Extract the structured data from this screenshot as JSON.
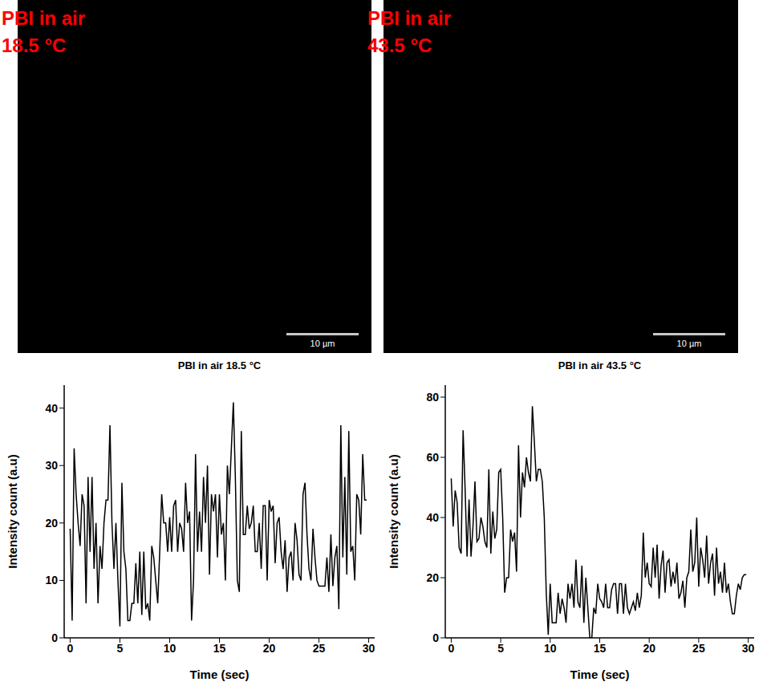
{
  "images": [
    {
      "label": [
        "PBI in air",
        "18.5 °C"
      ],
      "scale_bar": "10 µm"
    },
    {
      "label": [
        "PBI in air",
        "43.5 °C"
      ],
      "scale_bar": "10 µm"
    }
  ],
  "chart_data": [
    {
      "type": "line",
      "title": "PBI in air 18.5 °C",
      "x_label": "Time (sec)",
      "y_label": "Intensity count (a.u)",
      "color": "#000000",
      "xlim": [
        -0.6,
        30.6
      ],
      "xticks": [
        0,
        5,
        10,
        15,
        20,
        25,
        30
      ],
      "ylim": [
        0,
        44
      ],
      "yticks": [
        0,
        10,
        20,
        30,
        40
      ],
      "x": [
        0,
        0.2,
        0.4,
        0.6,
        0.8,
        1,
        1.2,
        1.4,
        1.6,
        1.8,
        2,
        2.2,
        2.4,
        2.6,
        2.8,
        3,
        3.2,
        3.4,
        3.6,
        3.8,
        4,
        4.2,
        4.4,
        4.6,
        4.8,
        5,
        5.2,
        5.4,
        5.6,
        5.8,
        6,
        6.2,
        6.4,
        6.6,
        6.8,
        7,
        7.2,
        7.4,
        7.6,
        7.8,
        8,
        8.2,
        8.4,
        8.6,
        8.8,
        9,
        9.2,
        9.4,
        9.6,
        9.8,
        10,
        10.2,
        10.4,
        10.6,
        10.8,
        11,
        11.2,
        11.4,
        11.6,
        11.8,
        12,
        12.2,
        12.4,
        12.6,
        12.8,
        13,
        13.2,
        13.4,
        13.6,
        13.8,
        14,
        14.2,
        14.4,
        14.6,
        14.8,
        15,
        15.2,
        15.4,
        15.6,
        15.8,
        16,
        16.2,
        16.4,
        16.6,
        16.8,
        17,
        17.2,
        17.4,
        17.6,
        17.8,
        18,
        18.2,
        18.4,
        18.6,
        18.8,
        19,
        19.2,
        19.4,
        19.6,
        19.8,
        20,
        20.2,
        20.4,
        20.6,
        20.8,
        21,
        21.2,
        21.4,
        21.6,
        21.8,
        22,
        22.2,
        22.4,
        22.6,
        22.8,
        23,
        23.2,
        23.4,
        23.6,
        23.8,
        24,
        24.2,
        24.4,
        24.6,
        24.8,
        25,
        25.2,
        25.4,
        25.6,
        25.8,
        26,
        26.2,
        26.4,
        26.6,
        26.8,
        27,
        27.2,
        27.4,
        27.6,
        27.8,
        28,
        28.2,
        28.4,
        28.6,
        28.8,
        29,
        29.2,
        29.4,
        29.6,
        29.8
      ],
      "values": [
        19,
        3,
        33,
        25,
        20,
        16,
        25,
        23,
        6,
        28,
        15,
        28,
        12,
        20,
        6,
        16,
        12,
        20,
        24,
        24,
        37,
        20,
        12,
        20,
        10,
        2,
        27,
        15,
        12,
        3,
        3,
        6,
        6,
        13,
        6,
        15,
        4,
        15,
        5,
        6,
        3,
        16,
        14,
        10,
        6,
        15,
        25,
        20,
        20,
        15,
        21,
        15,
        23,
        24,
        15,
        20,
        19,
        15,
        27,
        20,
        22,
        3,
        10,
        32,
        15,
        22,
        15,
        28,
        20,
        30,
        11,
        25,
        22,
        25,
        14,
        25,
        18,
        20,
        10,
        30,
        25,
        33,
        41,
        28,
        10,
        8,
        36,
        18,
        18,
        23,
        19,
        20,
        23,
        15,
        15,
        20,
        12,
        23,
        23,
        10,
        24,
        22,
        23,
        13,
        20,
        21,
        15,
        12,
        17,
        8,
        14,
        15,
        10,
        20,
        17,
        11,
        10,
        25,
        27,
        18,
        12,
        10,
        19,
        14,
        10,
        9,
        9,
        9,
        9,
        14,
        8,
        18,
        9,
        14,
        16,
        5,
        37,
        14,
        28,
        11,
        36,
        15,
        16,
        10,
        25,
        24,
        18,
        32,
        24,
        24
      ]
    },
    {
      "type": "line",
      "title": "PBI in air 43.5 °C",
      "x_label": "Time (sec)",
      "y_label": "Intensity count (a.u)",
      "color": "#000000",
      "xlim": [
        -0.6,
        30.6
      ],
      "xticks": [
        0,
        5,
        10,
        15,
        20,
        25,
        30
      ],
      "ylim": [
        0,
        84
      ],
      "yticks": [
        0,
        20,
        40,
        60,
        80
      ],
      "x": [
        0,
        0.2,
        0.4,
        0.6,
        0.8,
        1,
        1.2,
        1.4,
        1.6,
        1.8,
        2,
        2.2,
        2.4,
        2.6,
        2.8,
        3,
        3.2,
        3.4,
        3.6,
        3.8,
        4,
        4.2,
        4.4,
        4.6,
        4.8,
        5,
        5.2,
        5.4,
        5.6,
        5.8,
        6,
        6.2,
        6.4,
        6.6,
        6.8,
        7,
        7.2,
        7.4,
        7.6,
        7.8,
        8,
        8.2,
        8.4,
        8.6,
        8.8,
        9,
        9.2,
        9.4,
        9.6,
        9.8,
        10,
        10.2,
        10.4,
        10.6,
        10.8,
        11,
        11.2,
        11.4,
        11.6,
        11.8,
        12,
        12.2,
        12.4,
        12.6,
        12.8,
        13,
        13.2,
        13.4,
        13.6,
        13.8,
        14,
        14.2,
        14.4,
        14.6,
        14.8,
        15,
        15.2,
        15.4,
        15.6,
        15.8,
        16,
        16.2,
        16.4,
        16.6,
        16.8,
        17,
        17.2,
        17.4,
        17.6,
        17.8,
        18,
        18.2,
        18.4,
        18.6,
        18.8,
        19,
        19.2,
        19.4,
        19.6,
        19.8,
        20,
        20.2,
        20.4,
        20.6,
        20.8,
        21,
        21.2,
        21.4,
        21.6,
        21.8,
        22,
        22.2,
        22.4,
        22.6,
        22.8,
        23,
        23.2,
        23.4,
        23.6,
        23.8,
        24,
        24.2,
        24.4,
        24.6,
        24.8,
        25,
        25.2,
        25.4,
        25.6,
        25.8,
        26,
        26.2,
        26.4,
        26.6,
        26.8,
        27,
        27.2,
        27.4,
        27.6,
        27.8,
        28,
        28.2,
        28.4,
        28.6,
        28.8,
        29,
        29.2,
        29.4,
        29.6,
        29.8
      ],
      "values": [
        53,
        37,
        49,
        45,
        30,
        28,
        69,
        50,
        27,
        46,
        27,
        37,
        52,
        32,
        33,
        40,
        37,
        32,
        30,
        56,
        28,
        42,
        33,
        36,
        55,
        56,
        40,
        15,
        20,
        20,
        36,
        32,
        35,
        22,
        64,
        40,
        55,
        50,
        60,
        55,
        52,
        77,
        65,
        52,
        56,
        56,
        52,
        40,
        15,
        1,
        18,
        5,
        5,
        5,
        15,
        8,
        13,
        10,
        5,
        18,
        13,
        18,
        10,
        26,
        12,
        10,
        24,
        5,
        20,
        10,
        0,
        0,
        10,
        8,
        18,
        13,
        12,
        10,
        18,
        10,
        10,
        16,
        18,
        18,
        8,
        18,
        18,
        8,
        18,
        10,
        8,
        10,
        12,
        9,
        15,
        10,
        14,
        35,
        20,
        25,
        18,
        17,
        30,
        20,
        31,
        13,
        24,
        29,
        15,
        25,
        26,
        17,
        22,
        18,
        25,
        13,
        15,
        19,
        10,
        20,
        22,
        36,
        22,
        25,
        40,
        17,
        30,
        26,
        20,
        34,
        18,
        25,
        28,
        14,
        30,
        18,
        22,
        15,
        25,
        15,
        18,
        12,
        8,
        8,
        14,
        18,
        16,
        20,
        21,
        21
      ]
    }
  ]
}
